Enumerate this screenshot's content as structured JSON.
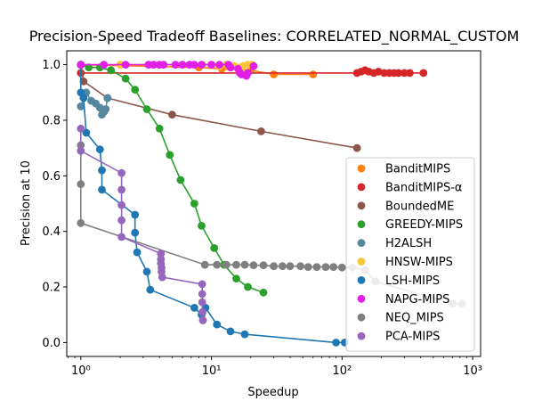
{
  "chart_data": {
    "type": "scatter",
    "title": "Precision-Speed Tradeoff Baselines: CORRELATED_NORMAL_CUSTOM",
    "xlabel": "Speedup",
    "ylabel": "Precision at 10",
    "xscale": "log",
    "xlim": [
      0.78,
      1150
    ],
    "ylim": [
      -0.05,
      1.05
    ],
    "xticks": [
      1,
      10,
      100,
      1000
    ],
    "xtick_labels": [
      "10⁰",
      "10¹",
      "10²",
      "10³"
    ],
    "yticks": [
      0.0,
      0.2,
      0.4,
      0.6,
      0.8,
      1.0
    ],
    "ytick_labels": [
      "0.0",
      "0.2",
      "0.4",
      "0.6",
      "0.8",
      "1.0"
    ],
    "grid": false,
    "legend_position": "lower-right",
    "series": [
      {
        "name": "BanditMIPS",
        "color": "#ff7f0e",
        "points": [
          [
            1,
            1.0
          ],
          [
            8,
            0.99
          ],
          [
            12,
            0.985
          ],
          [
            20,
            0.98
          ],
          [
            30,
            0.965
          ],
          [
            60,
            0.965
          ]
        ]
      },
      {
        "name": "BanditMIPS-α",
        "color": "#d62728",
        "points": [
          [
            1,
            0.97
          ],
          [
            130,
            0.97
          ],
          [
            140,
            0.975
          ],
          [
            150,
            0.98
          ],
          [
            160,
            0.975
          ],
          [
            175,
            0.97
          ],
          [
            190,
            0.975
          ],
          [
            210,
            0.97
          ],
          [
            230,
            0.97
          ],
          [
            250,
            0.97
          ],
          [
            270,
            0.97
          ],
          [
            300,
            0.97
          ],
          [
            330,
            0.97
          ],
          [
            420,
            0.97
          ]
        ]
      },
      {
        "name": "BoundedME",
        "color": "#8c564b",
        "points": [
          [
            1,
            1.0
          ],
          [
            1.05,
            0.94
          ],
          [
            1.6,
            0.88
          ],
          [
            5,
            0.82
          ],
          [
            24,
            0.76
          ],
          [
            130,
            0.7
          ]
        ]
      },
      {
        "name": "GREEDY-MIPS",
        "color": "#2ca02c",
        "points": [
          [
            1,
            1.0
          ],
          [
            1.15,
            0.99
          ],
          [
            1.4,
            0.99
          ],
          [
            1.7,
            0.98
          ],
          [
            2.2,
            0.95
          ],
          [
            2.6,
            0.91
          ],
          [
            3.2,
            0.84
          ],
          [
            4.0,
            0.77
          ],
          [
            4.8,
            0.675
          ],
          [
            5.8,
            0.585
          ],
          [
            7.4,
            0.5
          ],
          [
            8.4,
            0.42
          ],
          [
            10.5,
            0.34
          ],
          [
            12.5,
            0.28
          ],
          [
            15.5,
            0.23
          ],
          [
            19,
            0.2
          ],
          [
            25,
            0.18
          ]
        ]
      },
      {
        "name": "H2ALSH",
        "color": "#55889f",
        "points": [
          [
            1.0,
            0.85
          ],
          [
            1.1,
            0.9
          ],
          [
            1.2,
            0.87
          ],
          [
            1.3,
            0.86
          ],
          [
            1.4,
            0.845
          ],
          [
            1.45,
            0.82
          ],
          [
            1.5,
            0.83
          ],
          [
            1.55,
            0.84
          ],
          [
            1.6,
            0.88
          ]
        ]
      },
      {
        "name": "HNSW-MIPS",
        "color": "#f7c43c",
        "points": [
          [
            2,
            1.0
          ],
          [
            4,
            1.0
          ],
          [
            6,
            1.0
          ],
          [
            8.5,
            1.0
          ],
          [
            10,
            1.0
          ],
          [
            11.5,
            0.995
          ],
          [
            13,
            1.0
          ],
          [
            15,
            0.995
          ],
          [
            16.5,
            0.99
          ],
          [
            17.5,
            0.995
          ],
          [
            19,
            1.0
          ],
          [
            20.5,
            1.0
          ]
        ]
      },
      {
        "name": "LSH-MIPS",
        "color": "#1f77b4",
        "points": [
          [
            1,
            1.0
          ],
          [
            1.0,
            0.9
          ],
          [
            1.05,
            0.88
          ],
          [
            1.1,
            0.755
          ],
          [
            1.4,
            0.695
          ],
          [
            1.45,
            0.62
          ],
          [
            1.45,
            0.55
          ],
          [
            2.6,
            0.46
          ],
          [
            2.6,
            0.395
          ],
          [
            2.7,
            0.325
          ],
          [
            3.2,
            0.255
          ],
          [
            3.4,
            0.19
          ],
          [
            7.4,
            0.125
          ],
          [
            8.4,
            0.1
          ],
          [
            9,
            0.125
          ],
          [
            11,
            0.065
          ],
          [
            14,
            0.04
          ],
          [
            18,
            0.03
          ],
          [
            90,
            0.0
          ],
          [
            105,
            0.0
          ]
        ]
      },
      {
        "name": "NAPG-MIPS",
        "color": "#e11fe6",
        "points": [
          [
            1,
            1.0
          ],
          [
            1.5,
            1.0
          ],
          [
            2.2,
            1.0
          ],
          [
            3.3,
            1.0
          ],
          [
            3.6,
            1.0
          ],
          [
            4,
            1.0
          ],
          [
            4.3,
            1.0
          ],
          [
            5.3,
            1.0
          ],
          [
            6,
            1.0
          ],
          [
            6.8,
            1.0
          ],
          [
            7.4,
            1.0
          ],
          [
            8.4,
            1.0
          ],
          [
            10,
            1.0
          ],
          [
            11.5,
            1.0
          ],
          [
            13.5,
            1.0
          ],
          [
            14,
            0.99
          ],
          [
            16,
            0.985
          ],
          [
            16.5,
            0.97
          ],
          [
            17,
            0.965
          ],
          [
            18.5,
            0.96
          ],
          [
            19,
            0.97
          ],
          [
            21,
            0.995
          ]
        ]
      },
      {
        "name": "NEQ_MIPS",
        "color": "#7f7f7f",
        "points": [
          [
            1,
            0.71
          ],
          [
            1,
            0.57
          ],
          [
            1,
            0.43
          ],
          [
            8.9,
            0.28
          ],
          [
            11,
            0.28
          ],
          [
            13,
            0.28
          ],
          [
            15.5,
            0.28
          ],
          [
            18,
            0.28
          ],
          [
            21,
            0.278
          ],
          [
            25,
            0.278
          ],
          [
            30,
            0.275
          ],
          [
            35,
            0.275
          ],
          [
            40,
            0.275
          ],
          [
            48,
            0.275
          ],
          [
            55,
            0.272
          ],
          [
            64,
            0.272
          ],
          [
            75,
            0.272
          ],
          [
            86,
            0.272
          ],
          [
            100,
            0.27
          ],
          [
            120,
            0.27
          ],
          [
            150,
            0.26
          ],
          [
            180,
            0.22
          ],
          [
            700,
            0.14
          ],
          [
            830,
            0.14
          ]
        ]
      },
      {
        "name": "PCA-MIPS",
        "color": "#9467bd",
        "points": [
          [
            1,
            0.77
          ],
          [
            1,
            0.69
          ],
          [
            2.05,
            0.61
          ],
          [
            2.05,
            0.55
          ],
          [
            2.05,
            0.495
          ],
          [
            2.05,
            0.44
          ],
          [
            2.05,
            0.38
          ],
          [
            4.1,
            0.32
          ],
          [
            4.1,
            0.3
          ],
          [
            4.1,
            0.285
          ],
          [
            4.15,
            0.27
          ],
          [
            4.15,
            0.255
          ],
          [
            4.2,
            0.235
          ],
          [
            8.5,
            0.21
          ],
          [
            8.5,
            0.175
          ],
          [
            8.5,
            0.145
          ],
          [
            8.55,
            0.11
          ],
          [
            8.6,
            0.08
          ]
        ]
      }
    ]
  }
}
